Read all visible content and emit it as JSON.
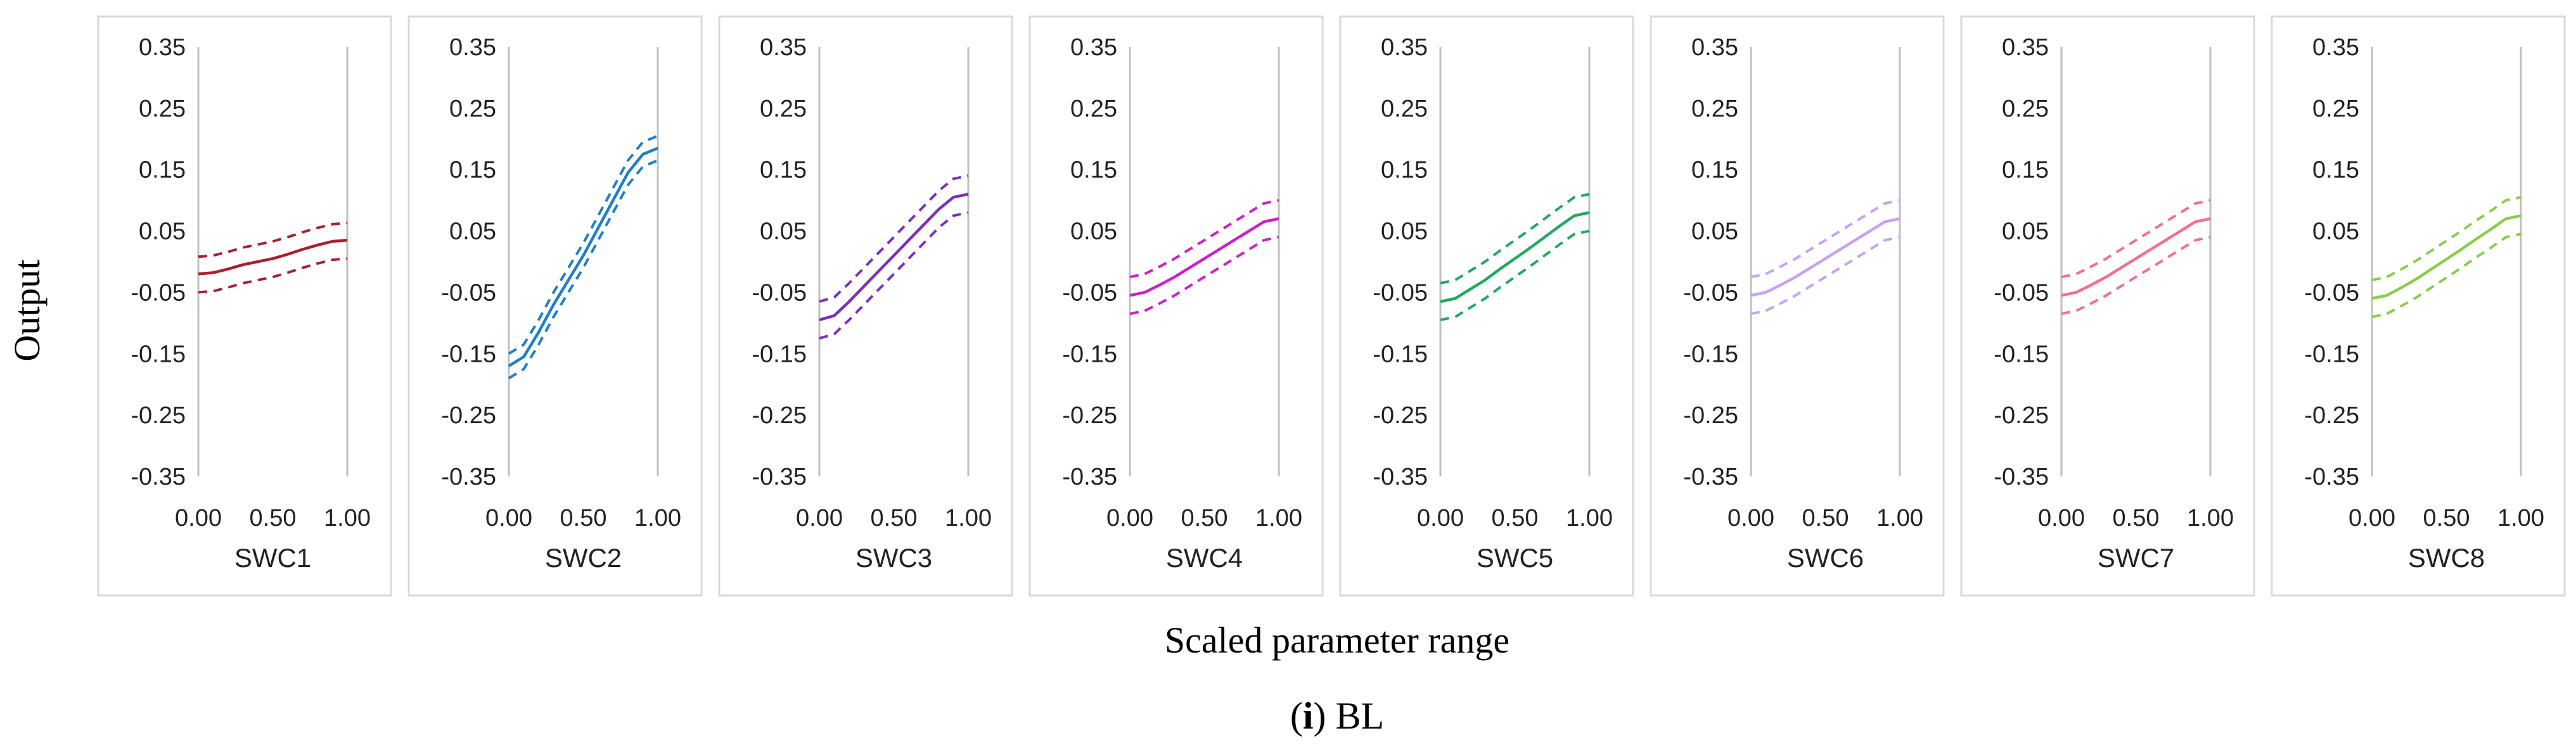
{
  "chart_data": {
    "type": "line",
    "panels": [
      {
        "name": "SWC1",
        "xlabel": "SWC1",
        "color": "#A8202F",
        "x": [
          0,
          0.1,
          0.2,
          0.3,
          0.4,
          0.5,
          0.6,
          0.7,
          0.8,
          0.9,
          1.0
        ],
        "mean": [
          -0.02,
          -0.018,
          -0.012,
          -0.005,
          0.0,
          0.005,
          0.012,
          0.02,
          0.027,
          0.033,
          0.035
        ],
        "upper": [
          0.008,
          0.01,
          0.016,
          0.023,
          0.028,
          0.033,
          0.04,
          0.048,
          0.055,
          0.061,
          0.063
        ],
        "lower": [
          -0.05,
          -0.048,
          -0.042,
          -0.035,
          -0.03,
          -0.025,
          -0.018,
          -0.01,
          -0.003,
          0.003,
          0.005
        ]
      },
      {
        "name": "SWC2",
        "xlabel": "SWC2",
        "color": "#1E7FC8",
        "x": [
          0,
          0.1,
          0.2,
          0.3,
          0.4,
          0.5,
          0.6,
          0.7,
          0.8,
          0.9,
          1.0
        ],
        "mean": [
          -0.17,
          -0.155,
          -0.115,
          -0.07,
          -0.03,
          0.01,
          0.055,
          0.1,
          0.145,
          0.175,
          0.185
        ],
        "upper": [
          -0.15,
          -0.135,
          -0.095,
          -0.05,
          -0.01,
          0.03,
          0.075,
          0.12,
          0.165,
          0.195,
          0.205
        ],
        "lower": [
          -0.19,
          -0.175,
          -0.135,
          -0.09,
          -0.05,
          -0.01,
          0.035,
          0.08,
          0.125,
          0.155,
          0.165
        ]
      },
      {
        "name": "SWC3",
        "xlabel": "SWC3",
        "color": "#7B2FBE",
        "x": [
          0,
          0.1,
          0.2,
          0.3,
          0.4,
          0.5,
          0.6,
          0.7,
          0.8,
          0.9,
          1.0
        ],
        "mean": [
          -0.095,
          -0.088,
          -0.065,
          -0.04,
          -0.015,
          0.01,
          0.035,
          0.06,
          0.085,
          0.105,
          0.11
        ],
        "upper": [
          -0.065,
          -0.058,
          -0.035,
          -0.01,
          0.015,
          0.04,
          0.065,
          0.09,
          0.115,
          0.135,
          0.14
        ],
        "lower": [
          -0.125,
          -0.118,
          -0.095,
          -0.07,
          -0.045,
          -0.02,
          0.005,
          0.03,
          0.055,
          0.075,
          0.08
        ]
      },
      {
        "name": "SWC4",
        "xlabel": "SWC4",
        "color": "#CC1FCC",
        "x": [
          0,
          0.1,
          0.2,
          0.3,
          0.4,
          0.5,
          0.6,
          0.7,
          0.8,
          0.9,
          1.0
        ],
        "mean": [
          -0.055,
          -0.05,
          -0.038,
          -0.025,
          -0.01,
          0.005,
          0.02,
          0.035,
          0.05,
          0.065,
          0.07
        ],
        "upper": [
          -0.025,
          -0.02,
          -0.008,
          0.005,
          0.02,
          0.035,
          0.05,
          0.065,
          0.08,
          0.095,
          0.1
        ],
        "lower": [
          -0.085,
          -0.08,
          -0.068,
          -0.055,
          -0.04,
          -0.025,
          -0.01,
          0.005,
          0.02,
          0.035,
          0.04
        ]
      },
      {
        "name": "SWC5",
        "xlabel": "SWC5",
        "color": "#22A860",
        "x": [
          0,
          0.1,
          0.2,
          0.3,
          0.4,
          0.5,
          0.6,
          0.7,
          0.8,
          0.9,
          1.0
        ],
        "mean": [
          -0.065,
          -0.06,
          -0.045,
          -0.03,
          -0.012,
          0.005,
          0.022,
          0.04,
          0.058,
          0.075,
          0.08
        ],
        "upper": [
          -0.035,
          -0.03,
          -0.015,
          0.0,
          0.018,
          0.035,
          0.052,
          0.07,
          0.088,
          0.105,
          0.11
        ],
        "lower": [
          -0.095,
          -0.09,
          -0.075,
          -0.06,
          -0.042,
          -0.025,
          -0.008,
          0.01,
          0.028,
          0.045,
          0.05
        ]
      },
      {
        "name": "SWC6",
        "xlabel": "SWC6",
        "color": "#C7A1F2",
        "x": [
          0,
          0.1,
          0.2,
          0.3,
          0.4,
          0.5,
          0.6,
          0.7,
          0.8,
          0.9,
          1.0
        ],
        "mean": [
          -0.055,
          -0.05,
          -0.038,
          -0.025,
          -0.01,
          0.005,
          0.02,
          0.035,
          0.05,
          0.065,
          0.07
        ],
        "upper": [
          -0.025,
          -0.02,
          -0.008,
          0.005,
          0.02,
          0.035,
          0.05,
          0.065,
          0.08,
          0.095,
          0.1
        ],
        "lower": [
          -0.085,
          -0.08,
          -0.068,
          -0.055,
          -0.04,
          -0.025,
          -0.01,
          0.005,
          0.02,
          0.035,
          0.04
        ]
      },
      {
        "name": "SWC7",
        "xlabel": "SWC7",
        "color": "#F0708F",
        "x": [
          0,
          0.1,
          0.2,
          0.3,
          0.4,
          0.5,
          0.6,
          0.7,
          0.8,
          0.9,
          1.0
        ],
        "mean": [
          -0.055,
          -0.05,
          -0.038,
          -0.025,
          -0.01,
          0.005,
          0.02,
          0.035,
          0.05,
          0.065,
          0.07
        ],
        "upper": [
          -0.025,
          -0.02,
          -0.008,
          0.005,
          0.02,
          0.035,
          0.05,
          0.065,
          0.08,
          0.095,
          0.1
        ],
        "lower": [
          -0.085,
          -0.08,
          -0.068,
          -0.055,
          -0.04,
          -0.025,
          -0.01,
          0.005,
          0.02,
          0.035,
          0.04
        ]
      },
      {
        "name": "SWC8",
        "xlabel": "SWC8",
        "color": "#8CCB4E",
        "x": [
          0,
          0.1,
          0.2,
          0.3,
          0.4,
          0.5,
          0.6,
          0.7,
          0.8,
          0.9,
          1.0
        ],
        "mean": [
          -0.06,
          -0.055,
          -0.042,
          -0.028,
          -0.012,
          0.004,
          0.02,
          0.037,
          0.053,
          0.07,
          0.075
        ],
        "upper": [
          -0.03,
          -0.025,
          -0.012,
          0.002,
          0.018,
          0.034,
          0.05,
          0.067,
          0.083,
          0.1,
          0.105
        ],
        "lower": [
          -0.09,
          -0.085,
          -0.072,
          -0.058,
          -0.042,
          -0.026,
          -0.01,
          0.007,
          0.023,
          0.04,
          0.045
        ]
      }
    ],
    "yticks": [
      "0.35",
      "0.25",
      "0.15",
      "0.05",
      "-0.05",
      "-0.15",
      "-0.25",
      "-0.35"
    ],
    "ytick_values": [
      0.35,
      0.25,
      0.15,
      0.05,
      -0.05,
      -0.15,
      -0.25,
      -0.35
    ],
    "xticks": [
      "0.00",
      "0.50",
      "1.00"
    ],
    "xtick_values": [
      0,
      0.5,
      1.0
    ],
    "ylim": [
      -0.35,
      0.35
    ],
    "xlim": [
      0,
      1
    ],
    "ylabel": "Output",
    "xlabel": "Scaled parameter range",
    "caption_prefix": "(",
    "caption_letter": "i",
    "caption_suffix": ") BL",
    "grid": false
  },
  "colors": {
    "axis": "#BFBFBF",
    "panel_border": "#D9D9D9",
    "text": "#222222"
  }
}
